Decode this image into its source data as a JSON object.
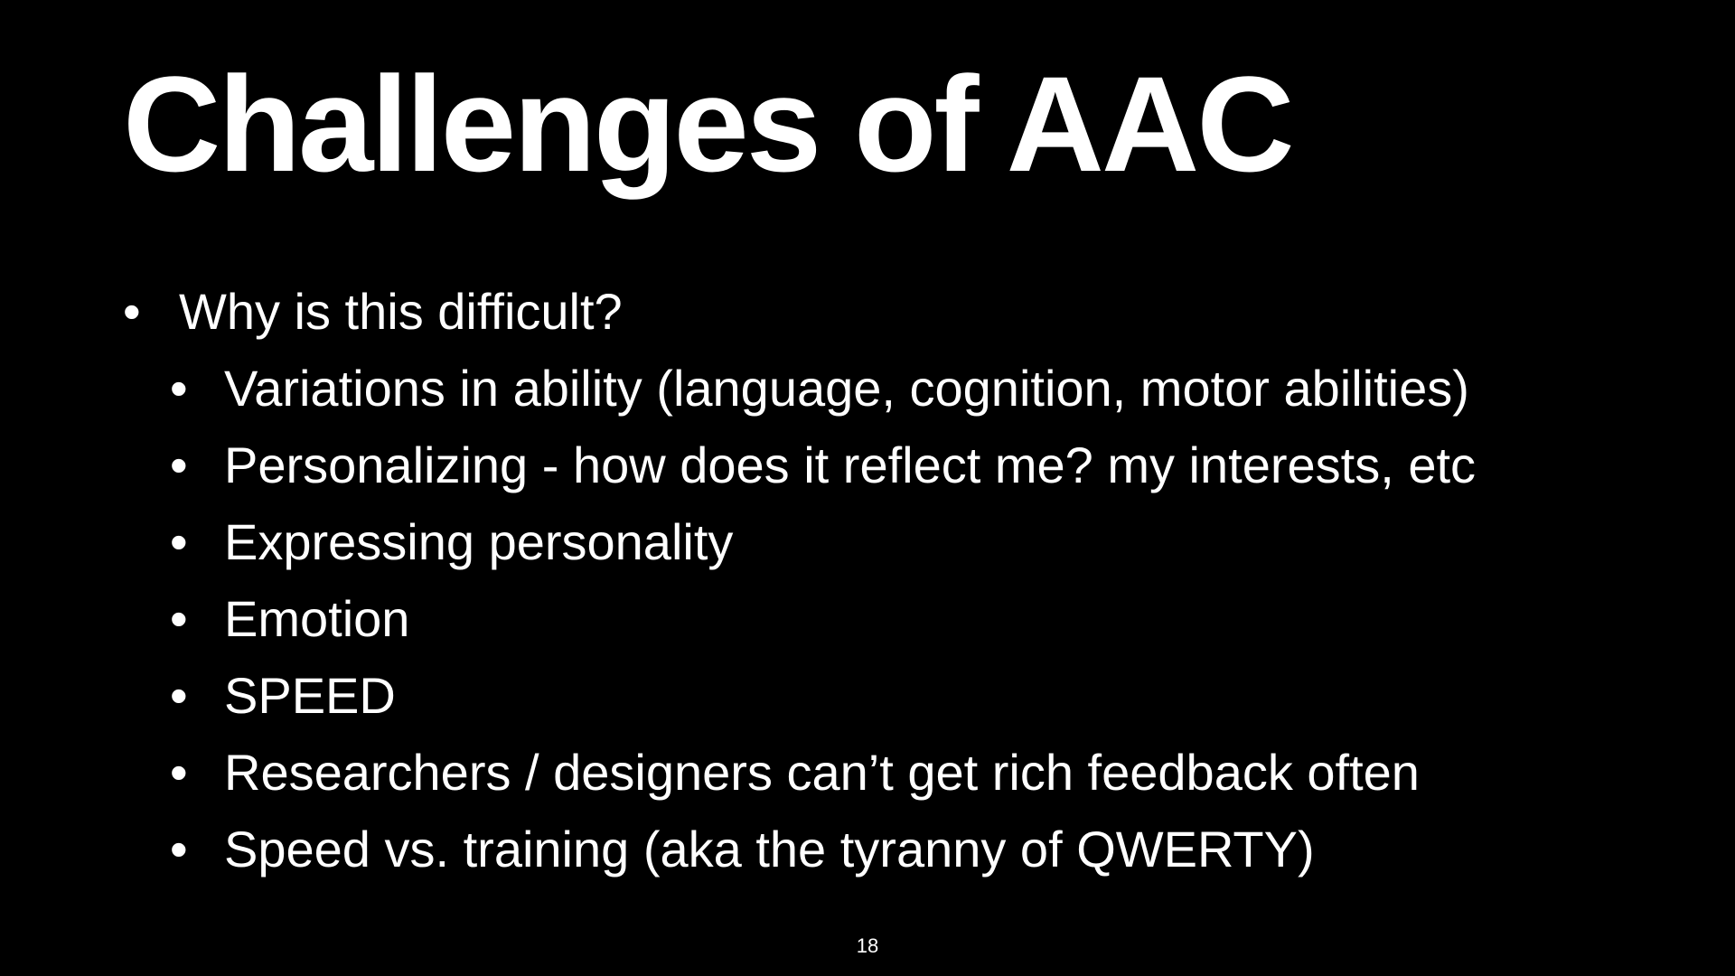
{
  "slide": {
    "title": "Challenges of AAC",
    "bullets": [
      {
        "level": 1,
        "marker": "•",
        "text": "Why is this difficult?"
      },
      {
        "level": 2,
        "marker": "•",
        "text": "Variations in ability (language, cognition, motor abilities)"
      },
      {
        "level": 2,
        "marker": "•",
        "text": "Personalizing - how does it reflect me? my interests, etc"
      },
      {
        "level": 2,
        "marker": "•",
        "text": "Expressing personality"
      },
      {
        "level": 2,
        "marker": "•",
        "text": "Emotion"
      },
      {
        "level": 2,
        "marker": "•",
        "text": "SPEED"
      },
      {
        "level": 2,
        "marker": "•",
        "text": "Researchers / designers can’t get rich feedback often"
      },
      {
        "level": 2,
        "marker": "•",
        "text": "Speed vs. training (aka the tyranny of QWERTY)"
      }
    ],
    "page_number": "18"
  },
  "colors": {
    "background": "#000000",
    "text": "#ffffff"
  }
}
